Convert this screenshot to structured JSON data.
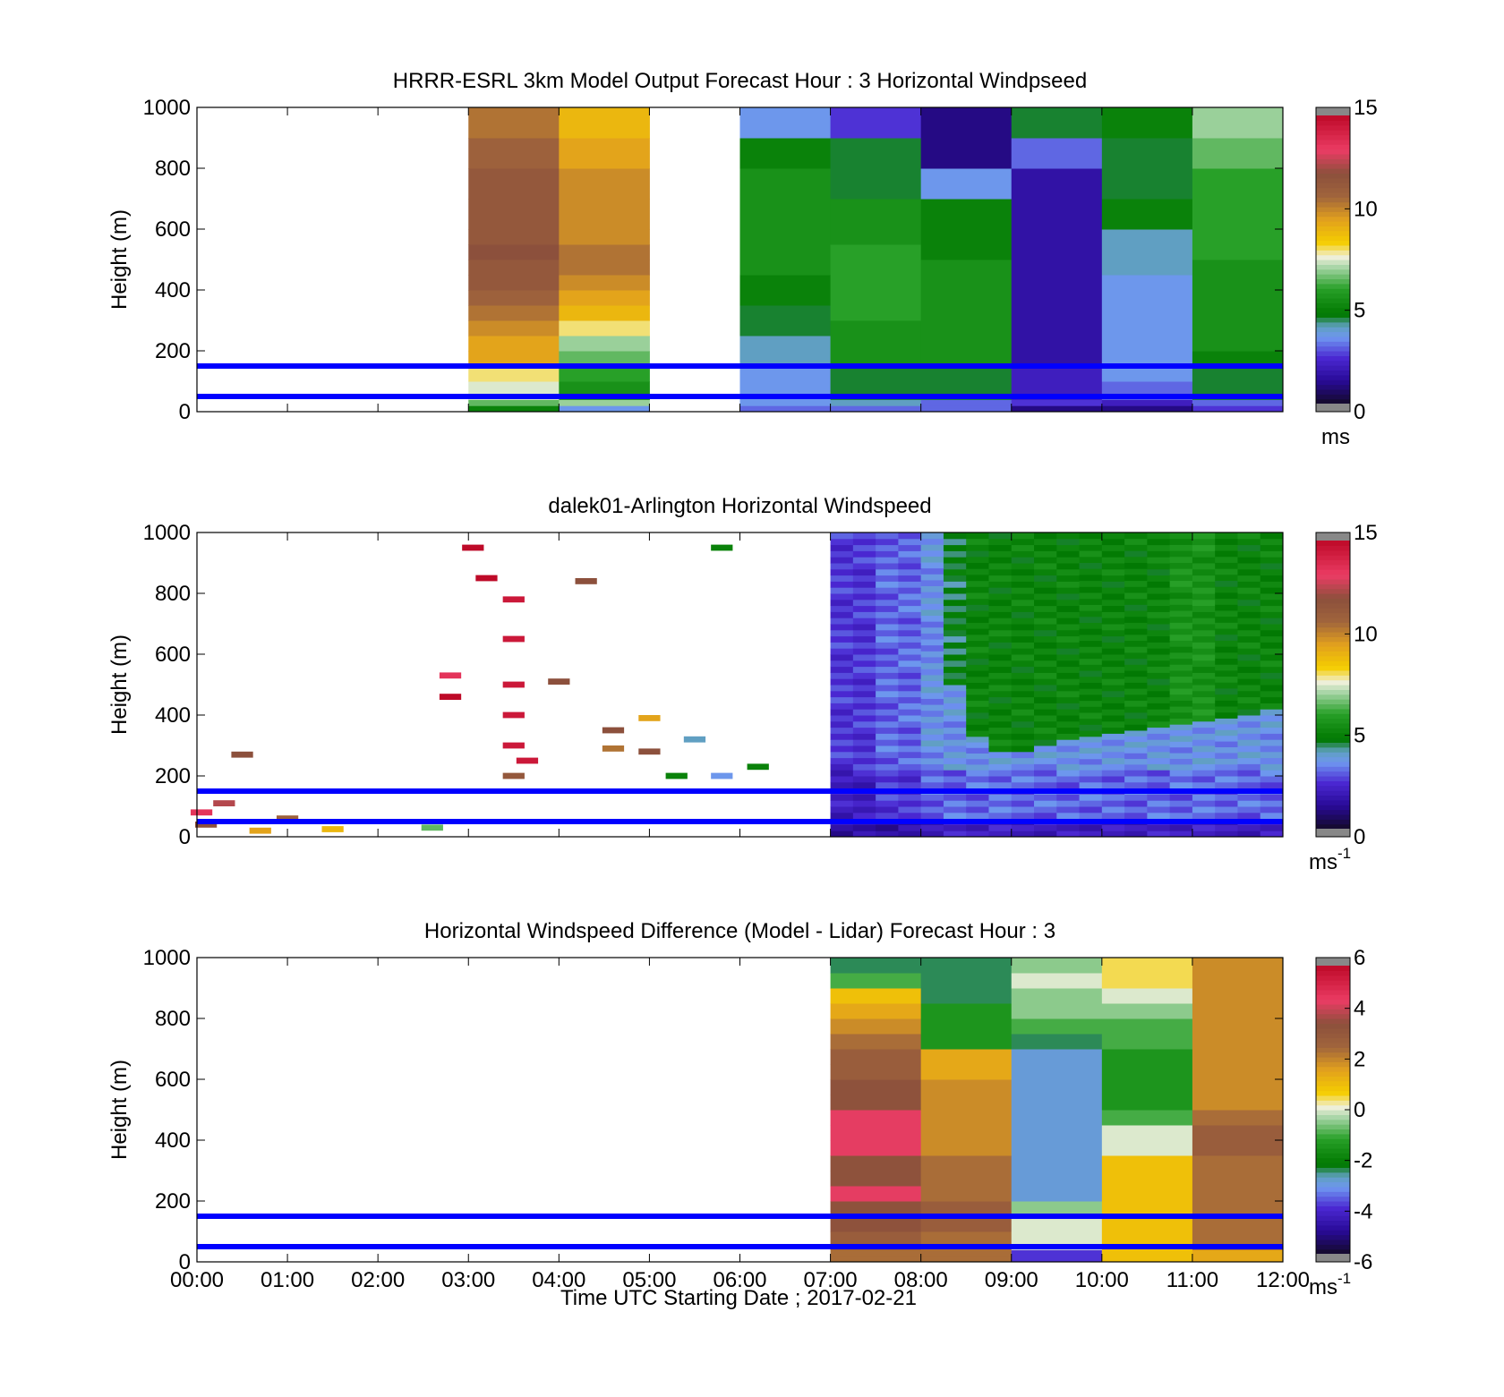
{
  "xlabel": "Time UTC  Starting Date ; 2017-02-21",
  "x_ticks": [
    "00:00",
    "01:00",
    "02:00",
    "03:00",
    "04:00",
    "05:00",
    "06:00",
    "07:00",
    "08:00",
    "09:00",
    "10:00",
    "11:00",
    "12:00"
  ],
  "reference_lines_m": [
    50,
    150
  ],
  "colors": {
    "reference_line": "#0000ff",
    "missing": "#ffffff"
  },
  "chart_data": [
    {
      "type": "heatmap",
      "title": "HRRR-ESRL 3km Model Output   Forecast Hour : 3 Horizontal Windpseed",
      "ylabel": "Height (m)",
      "xlim": [
        "00:00",
        "12:00"
      ],
      "ylim": [
        0,
        1000
      ],
      "y_ticks": [
        0,
        200,
        400,
        600,
        800,
        1000
      ],
      "colorbar": {
        "ticks": [
          0,
          5,
          10,
          15
        ],
        "range": [
          0,
          15
        ],
        "unit": "ms",
        "unit_sup": ""
      },
      "grid": false,
      "x_bins_hours": [
        0,
        1,
        2,
        3,
        4,
        5,
        6,
        7,
        8,
        9,
        10,
        11,
        12
      ],
      "y_bins_m": [
        0,
        20,
        40,
        100,
        150,
        200,
        250,
        300,
        350,
        400,
        450,
        500,
        550,
        600,
        700,
        800,
        900,
        1000
      ],
      "values": [
        [
          null,
          null,
          null,
          5.0,
          3.5,
          null,
          3.0,
          3.0,
          3.0,
          1.0,
          1.0,
          2.5
        ],
        [
          null,
          null,
          null,
          6.5,
          7.0,
          null,
          3.5,
          4.0,
          3.0,
          2.5,
          2.0,
          3.0
        ],
        [
          null,
          null,
          null,
          7.5,
          5.5,
          null,
          3.5,
          4.5,
          4.5,
          2.0,
          3.0,
          4.5
        ],
        [
          null,
          null,
          null,
          8.0,
          6.0,
          null,
          3.5,
          4.5,
          4.5,
          2.0,
          3.5,
          4.5
        ],
        [
          null,
          null,
          null,
          9.5,
          6.5,
          null,
          4.0,
          5.5,
          5.5,
          1.5,
          3.5,
          5.0
        ],
        [
          null,
          null,
          null,
          9.5,
          7.0,
          null,
          4.0,
          5.5,
          5.5,
          1.5,
          3.5,
          5.5
        ],
        [
          null,
          null,
          null,
          10.0,
          8.0,
          null,
          4.5,
          5.5,
          5.5,
          1.5,
          3.5,
          5.5
        ],
        [
          null,
          null,
          null,
          10.5,
          9.0,
          null,
          4.5,
          6.0,
          5.5,
          1.5,
          3.5,
          5.5
        ],
        [
          null,
          null,
          null,
          11.0,
          9.5,
          null,
          5.0,
          6.0,
          5.5,
          1.5,
          3.5,
          5.5
        ],
        [
          null,
          null,
          null,
          11.5,
          10.0,
          null,
          5.0,
          6.0,
          5.5,
          1.5,
          3.5,
          5.5
        ],
        [
          null,
          null,
          null,
          11.5,
          10.5,
          null,
          5.5,
          6.0,
          5.5,
          1.5,
          4.0,
          5.5
        ],
        [
          null,
          null,
          null,
          12.0,
          10.5,
          null,
          5.5,
          6.0,
          5.0,
          1.5,
          4.0,
          6.0
        ],
        [
          null,
          null,
          null,
          11.5,
          10.0,
          null,
          5.5,
          5.5,
          5.0,
          1.5,
          4.0,
          6.0
        ],
        [
          null,
          null,
          null,
          11.5,
          10.0,
          null,
          5.5,
          5.5,
          5.0,
          1.5,
          5.0,
          6.0
        ],
        [
          null,
          null,
          null,
          11.5,
          10.0,
          null,
          5.5,
          4.5,
          3.5,
          1.5,
          4.5,
          6.0
        ],
        [
          null,
          null,
          null,
          11.0,
          9.5,
          null,
          5.0,
          4.5,
          1.0,
          3.0,
          4.5,
          6.5
        ],
        [
          null,
          null,
          null,
          10.5,
          9.0,
          null,
          3.5,
          2.5,
          1.0,
          4.5,
          5.0,
          7.0
        ]
      ]
    },
    {
      "type": "heatmap",
      "title": "dalek01-Arlington  Horizontal Windspeed",
      "ylabel": "Height (m)",
      "xlim": [
        "00:00",
        "12:00"
      ],
      "ylim": [
        0,
        1000
      ],
      "y_ticks": [
        0,
        200,
        400,
        600,
        800,
        1000
      ],
      "colorbar": {
        "ticks": [
          0,
          5,
          10,
          15
        ],
        "range": [
          0,
          15
        ],
        "unit": "ms",
        "unit_sup": "-1"
      },
      "grid": false,
      "lidar_profile_summary": {
        "x_hours": [
          7.0,
          7.25,
          7.5,
          7.75,
          8.0,
          8.25,
          8.5,
          8.75,
          9.0,
          9.25,
          9.5,
          9.75,
          10.0,
          10.25,
          10.5,
          10.75,
          11.0,
          11.25,
          11.5,
          11.75
        ],
        "low_layer_speed": [
          1.5,
          1.5,
          1.5,
          1.5,
          2.0,
          2.0,
          2.0,
          2.0,
          2.0,
          2.0,
          2.0,
          2.0,
          2.0,
          2.0,
          2.0,
          2.0,
          2.0,
          2.0,
          2.0,
          2.0
        ],
        "mid_layer_speed": [
          2.0,
          2.0,
          2.5,
          2.5,
          3.0,
          3.0,
          3.0,
          3.0,
          3.0,
          3.0,
          3.0,
          3.0,
          3.0,
          3.0,
          3.0,
          3.0,
          3.0,
          3.0,
          3.0,
          3.0
        ],
        "upper_layer_speed": [
          2.5,
          2.0,
          2.0,
          3.0,
          3.5,
          4.5,
          5.0,
          5.0,
          5.0,
          5.0,
          5.0,
          5.0,
          5.0,
          5.0,
          5.0,
          5.5,
          5.5,
          5.0,
          5.0,
          5.0
        ],
        "transition_height_m": [
          1000,
          1000,
          1000,
          900,
          650,
          500,
          330,
          280,
          280,
          300,
          320,
          330,
          340,
          350,
          360,
          370,
          380,
          390,
          400,
          420
        ]
      },
      "scattered_early_returns": [
        {
          "t": 0.05,
          "h": 80,
          "v": 13.5
        },
        {
          "t": 0.1,
          "h": 40,
          "v": 12.0
        },
        {
          "t": 0.3,
          "h": 110,
          "v": 12.5
        },
        {
          "t": 0.5,
          "h": 270,
          "v": 12.0
        },
        {
          "t": 0.7,
          "h": 20,
          "v": 9.5
        },
        {
          "t": 1.0,
          "h": 60,
          "v": 11.0
        },
        {
          "t": 1.5,
          "h": 25,
          "v": 9.0
        },
        {
          "t": 2.6,
          "h": 30,
          "v": 6.5
        },
        {
          "t": 2.8,
          "h": 530,
          "v": 13.5
        },
        {
          "t": 2.8,
          "h": 460,
          "v": 15.0
        },
        {
          "t": 3.05,
          "h": 950,
          "v": 15.0
        },
        {
          "t": 3.2,
          "h": 850,
          "v": 15.0
        },
        {
          "t": 3.5,
          "h": 780,
          "v": 14.5
        },
        {
          "t": 3.5,
          "h": 650,
          "v": 14.5
        },
        {
          "t": 3.5,
          "h": 500,
          "v": 14.5
        },
        {
          "t": 3.5,
          "h": 400,
          "v": 14.5
        },
        {
          "t": 3.5,
          "h": 300,
          "v": 14.5
        },
        {
          "t": 3.5,
          "h": 200,
          "v": 11.5
        },
        {
          "t": 3.65,
          "h": 250,
          "v": 14.5
        },
        {
          "t": 4.0,
          "h": 510,
          "v": 12.0
        },
        {
          "t": 4.3,
          "h": 840,
          "v": 12.0
        },
        {
          "t": 4.6,
          "h": 350,
          "v": 12.0
        },
        {
          "t": 4.6,
          "h": 290,
          "v": 10.5
        },
        {
          "t": 5.0,
          "h": 390,
          "v": 9.5
        },
        {
          "t": 5.0,
          "h": 280,
          "v": 12.0
        },
        {
          "t": 5.3,
          "h": 200,
          "v": 5.0
        },
        {
          "t": 5.5,
          "h": 320,
          "v": 4.0
        },
        {
          "t": 5.8,
          "h": 200,
          "v": 3.5
        },
        {
          "t": 6.2,
          "h": 230,
          "v": 5.0
        },
        {
          "t": 5.8,
          "h": 950,
          "v": 5.0
        }
      ]
    },
    {
      "type": "heatmap",
      "title": "Horizontal Windspeed Difference (Model - Lidar) Forecast Hour : 3",
      "ylabel": "Height (m)",
      "xlim": [
        "00:00",
        "12:00"
      ],
      "ylim": [
        0,
        1000
      ],
      "y_ticks": [
        0,
        200,
        400,
        600,
        800,
        1000
      ],
      "colorbar": {
        "ticks": [
          -6,
          -4,
          -2,
          0,
          2,
          4,
          6
        ],
        "range": [
          -6,
          6
        ],
        "unit": "ms",
        "unit_sup": "-1"
      },
      "grid": false,
      "x_bins_hours": [
        7,
        8,
        9,
        10,
        11,
        12
      ],
      "y_bins_m": [
        0,
        20,
        40,
        100,
        150,
        200,
        250,
        300,
        350,
        400,
        450,
        500,
        550,
        600,
        650,
        700,
        750,
        800,
        850,
        900,
        950,
        1000
      ],
      "values": [
        [
          2.5,
          2.5,
          -4.0,
          1.0,
          1.5
        ],
        [
          2.5,
          2.5,
          -4.0,
          1.0,
          1.5
        ],
        [
          3.0,
          2.5,
          0.0,
          1.0,
          2.5
        ],
        [
          3.5,
          3.0,
          0.0,
          1.0,
          2.5
        ],
        [
          3.5,
          3.0,
          -0.5,
          1.0,
          2.5
        ],
        [
          4.5,
          2.5,
          -3.0,
          1.0,
          2.5
        ],
        [
          3.5,
          2.5,
          -3.0,
          1.0,
          2.5
        ],
        [
          3.5,
          2.5,
          -3.0,
          1.0,
          2.5
        ],
        [
          4.5,
          2.0,
          -3.0,
          0.0,
          3.0
        ],
        [
          4.5,
          2.0,
          -3.0,
          0.0,
          3.0
        ],
        [
          4.5,
          2.0,
          -3.0,
          -1.0,
          2.5
        ],
        [
          3.5,
          2.0,
          -3.0,
          -1.5,
          2.0
        ],
        [
          3.5,
          2.0,
          -3.0,
          -1.5,
          2.0
        ],
        [
          3.0,
          1.5,
          -3.0,
          -1.5,
          2.0
        ],
        [
          3.0,
          1.5,
          -3.0,
          -1.5,
          2.0
        ],
        [
          2.5,
          -1.5,
          -2.5,
          -1.0,
          2.0
        ],
        [
          2.0,
          -1.5,
          -1.0,
          -1.0,
          2.0
        ],
        [
          1.5,
          -1.5,
          -0.5,
          -0.5,
          2.0
        ],
        [
          1.0,
          -2.5,
          -0.5,
          0.0,
          2.0
        ],
        [
          -1.0,
          -2.5,
          0.0,
          0.5,
          2.0
        ],
        [
          -2.5,
          -2.5,
          -0.5,
          0.5,
          2.0
        ]
      ]
    }
  ]
}
